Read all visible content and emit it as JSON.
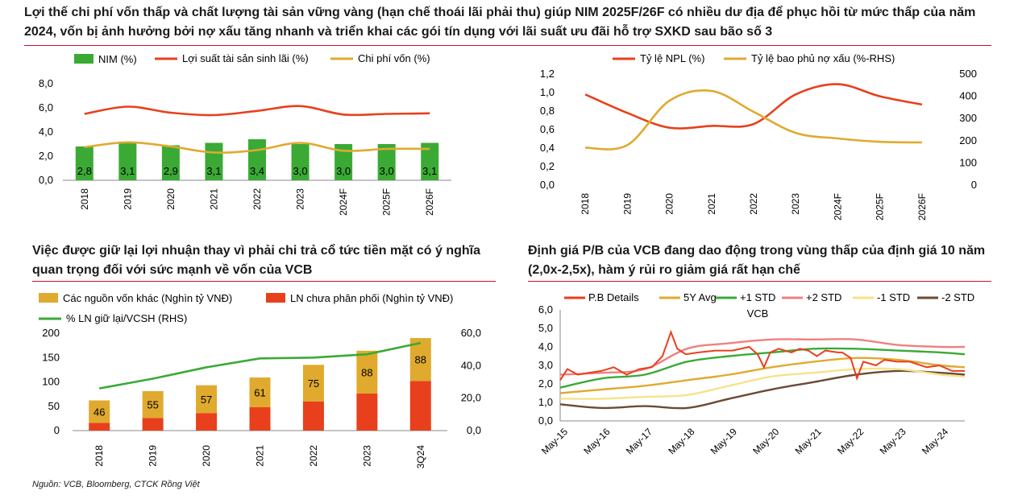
{
  "section_titles": {
    "top": "Lợi thế chi phí vốn thấp và chất lượng tài sản vững vàng (hạn chế thoái lãi phải thu) giúp NIM 2025F/26F có nhiều dư địa để phục hồi từ mức thấp của năm 2024, vốn bị ảnh hưởng bởi nợ xấu tăng nhanh và triển khai các gói tín dụng với lãi suất ưu đãi hỗ trợ SXKD sau bão số 3",
    "bottom_left": "Việc được giữ lại lợi nhuận thay vì phải chi trả cổ tức tiền mặt có ý nghĩa quan trọng đối với sức mạnh về vốn của VCB",
    "bottom_right": "Định giá P/B của VCB đang dao động trong vùng thấp của định giá 10 năm (2,0x-2,5x), hàm ý rủi ro giảm giá rất hạn chế"
  },
  "source": "Nguồn: VCB, Bloomberg, CTCK Rồng Việt",
  "colors": {
    "green": "#3aaa35",
    "red": "#e8401c",
    "gold": "#e0aa2e",
    "rule": "#c8102e"
  },
  "chart_data": [
    {
      "type": "bar",
      "id": "nim",
      "categories": [
        "2018",
        "2019",
        "2020",
        "2021",
        "2022",
        "2023",
        "2024F",
        "2025F",
        "2026F"
      ],
      "series": [
        {
          "name": "NIM (%)",
          "kind": "bar",
          "values": [
            2.8,
            3.1,
            2.9,
            3.1,
            3.4,
            3.0,
            3.0,
            3.0,
            3.1
          ]
        },
        {
          "name": "Lợi suất tài sản sinh lãi (%)",
          "kind": "line",
          "values": [
            5.5,
            6.1,
            5.6,
            5.4,
            5.75,
            6.15,
            5.45,
            5.5,
            5.55
          ]
        },
        {
          "name": "Chi phí vốn (%)",
          "kind": "line",
          "values": [
            2.75,
            3.15,
            2.8,
            2.3,
            2.5,
            3.1,
            2.45,
            2.6,
            2.6
          ]
        }
      ],
      "data_labels": [
        "2,8",
        "3,1",
        "2,9",
        "3,1",
        "3,4",
        "3,0",
        "3,0",
        "3,0",
        "3,1"
      ],
      "yticks": [
        "0,0",
        "2,0",
        "4,0",
        "6,0",
        "8,0"
      ],
      "ylim": [
        0,
        8
      ]
    },
    {
      "type": "line",
      "id": "npl",
      "categories": [
        "2018",
        "2019",
        "2020",
        "2021",
        "2022",
        "2023",
        "2024F",
        "2025F",
        "2026F"
      ],
      "series": [
        {
          "name": "Tỷ lệ NPL (%)",
          "axis": "left",
          "values": [
            0.98,
            0.78,
            0.62,
            0.64,
            0.66,
            0.98,
            1.09,
            0.96,
            0.87
          ]
        },
        {
          "name": "Tỷ lệ bao phủ nợ xấu (%-RHS)",
          "axis": "right",
          "values": [
            168,
            180,
            380,
            424,
            330,
            235,
            210,
            195,
            192
          ]
        }
      ],
      "yticks_left": [
        "0,0",
        "0,2",
        "0,4",
        "0,6",
        "0,8",
        "1,0",
        "1,2"
      ],
      "yticks_right": [
        "0",
        "100",
        "200",
        "300",
        "400",
        "500"
      ],
      "ylim_left": [
        0,
        1.2
      ],
      "ylim_right": [
        0,
        500
      ]
    },
    {
      "type": "bar",
      "id": "capital",
      "stacked": true,
      "categories": [
        "2018",
        "2019",
        "2020",
        "2021",
        "2022",
        "2023",
        "3Q24"
      ],
      "series": [
        {
          "name": "Các nguồn vốn khác (Nghìn tỷ VNĐ)",
          "kind": "bar",
          "values": [
            46,
            55,
            57,
            61,
            75,
            88,
            88
          ]
        },
        {
          "name": "LN chưa phân phối (Nghìn tỷ VNĐ)",
          "kind": "bar",
          "values": [
            16,
            26,
            36,
            48,
            60,
            76,
            102
          ]
        },
        {
          "name": "% LN giữ lại/VCSH (RHS)",
          "kind": "line",
          "axis": "right",
          "values": [
            26,
            32,
            39,
            44.5,
            45,
            47,
            54
          ]
        }
      ],
      "data_labels": [
        "46",
        "55",
        "57",
        "61",
        "75",
        "88",
        "88"
      ],
      "yticks_left": [
        "0",
        "50",
        "100",
        "150",
        "200"
      ],
      "yticks_right": [
        "0,0",
        "20,0",
        "40,0",
        "60,0"
      ],
      "ylim_left": [
        0,
        200
      ],
      "ylim_right": [
        0,
        60
      ]
    },
    {
      "type": "line",
      "id": "pb",
      "title": "VCB",
      "x_ticks": [
        "May-15",
        "May-16",
        "May-17",
        "May-18",
        "May-19",
        "May-20",
        "May-21",
        "May-22",
        "May-23",
        "May-24"
      ],
      "x_range": [
        2015.33,
        2024.9
      ],
      "yticks": [
        "0,0",
        "1,0",
        "2,0",
        "3,0",
        "4,0",
        "5,0",
        "6,0"
      ],
      "ylim": [
        0,
        6
      ],
      "series": [
        {
          "name": "P.B Details",
          "x": [
            2015.33,
            2015.5,
            2015.75,
            2016.0,
            2016.3,
            2016.6,
            2016.9,
            2017.2,
            2017.5,
            2017.75,
            2017.95,
            2018.1,
            2018.3,
            2018.6,
            2019.0,
            2019.4,
            2019.8,
            2020.0,
            2020.15,
            2020.3,
            2020.5,
            2020.8,
            2021.0,
            2021.2,
            2021.4,
            2021.6,
            2021.9,
            2022.0,
            2022.2,
            2022.35,
            2022.5,
            2022.8,
            2023.0,
            2023.3,
            2023.6,
            2024.0,
            2024.3,
            2024.6,
            2024.9
          ],
          "values": [
            2.2,
            2.8,
            2.5,
            2.6,
            2.7,
            2.9,
            2.5,
            2.8,
            2.9,
            3.5,
            4.8,
            3.9,
            3.6,
            3.7,
            3.8,
            3.8,
            4.0,
            3.6,
            2.9,
            3.7,
            3.9,
            3.7,
            3.9,
            3.8,
            3.5,
            3.8,
            3.7,
            3.7,
            3.4,
            2.3,
            3.2,
            3.0,
            3.3,
            3.2,
            3.2,
            2.9,
            3.0,
            2.7,
            2.7
          ]
        },
        {
          "name": "5Y Avg",
          "x": [
            2015.33,
            2016.33,
            2017.33,
            2018.33,
            2019.33,
            2020.33,
            2021.33,
            2022.33,
            2023.33,
            2024.33,
            2024.9
          ],
          "values": [
            1.5,
            1.7,
            1.9,
            2.2,
            2.5,
            2.9,
            3.2,
            3.4,
            3.3,
            3.0,
            2.9
          ]
        },
        {
          "name": "+1 STD",
          "x": [
            2015.33,
            2016.33,
            2017.33,
            2018.33,
            2019.33,
            2020.33,
            2021.33,
            2022.33,
            2023.33,
            2024.33,
            2024.9
          ],
          "values": [
            1.8,
            2.3,
            2.5,
            3.2,
            3.5,
            3.7,
            3.9,
            3.9,
            3.8,
            3.7,
            3.6
          ]
        },
        {
          "name": "+2 STD",
          "x": [
            2015.33,
            2016.33,
            2017.33,
            2018.33,
            2019.33,
            2020.33,
            2021.33,
            2022.33,
            2023.33,
            2024.33,
            2024.9
          ],
          "values": [
            2.5,
            2.6,
            2.8,
            3.9,
            4.2,
            4.4,
            4.4,
            4.4,
            4.1,
            4.0,
            4.0
          ]
        },
        {
          "name": "-1 STD",
          "x": [
            2015.33,
            2016.33,
            2017.33,
            2018.33,
            2019.33,
            2020.33,
            2021.33,
            2022.33,
            2023.33,
            2024.33,
            2024.9
          ],
          "values": [
            1.2,
            1.2,
            1.3,
            1.4,
            1.9,
            2.4,
            2.6,
            2.8,
            2.8,
            2.5,
            2.4
          ]
        },
        {
          "name": "-2 STD",
          "x": [
            2015.33,
            2016.33,
            2017.33,
            2018.33,
            2019.33,
            2020.33,
            2021.33,
            2022.33,
            2023.33,
            2024.33,
            2024.9
          ],
          "values": [
            0.9,
            0.7,
            0.8,
            0.7,
            1.2,
            1.7,
            2.1,
            2.5,
            2.7,
            2.6,
            2.5
          ]
        }
      ],
      "series_colors": [
        "#e8401c",
        "#e0aa2e",
        "#3aaa35",
        "#f08080",
        "#f5e38a",
        "#6b4a36"
      ]
    }
  ]
}
